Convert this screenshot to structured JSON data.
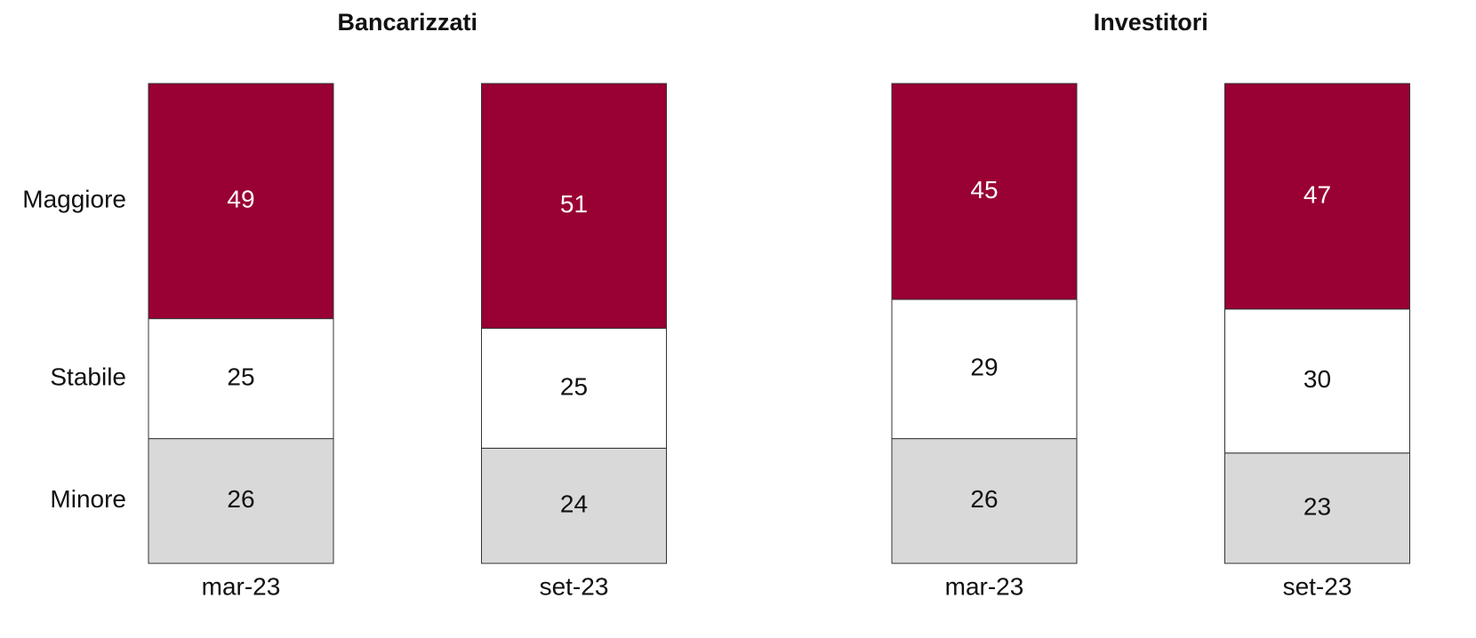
{
  "chart_data": [
    {
      "type": "stacked_bar",
      "title": "Bancarizzati",
      "categories": [
        "mar-23",
        "set-23"
      ],
      "ylim": [
        0,
        100
      ],
      "series": [
        {
          "name": "Minore",
          "color": "#d9d9d9",
          "values": [
            26,
            24
          ]
        },
        {
          "name": "Stabile",
          "color": "#ffffff",
          "values": [
            25,
            25
          ]
        },
        {
          "name": "Maggiore",
          "color": "#990033",
          "values": [
            49,
            51
          ]
        }
      ]
    },
    {
      "type": "stacked_bar",
      "title": "Investitori",
      "categories": [
        "mar-23",
        "set-23"
      ],
      "ylim": [
        0,
        100
      ],
      "series": [
        {
          "color": "#d9d9d9",
          "values": [
            26,
            23
          ]
        },
        {
          "color": "#ffffff",
          "values": [
            29,
            30
          ]
        },
        {
          "color": "#990033",
          "values": [
            45,
            47
          ]
        }
      ]
    }
  ]
}
